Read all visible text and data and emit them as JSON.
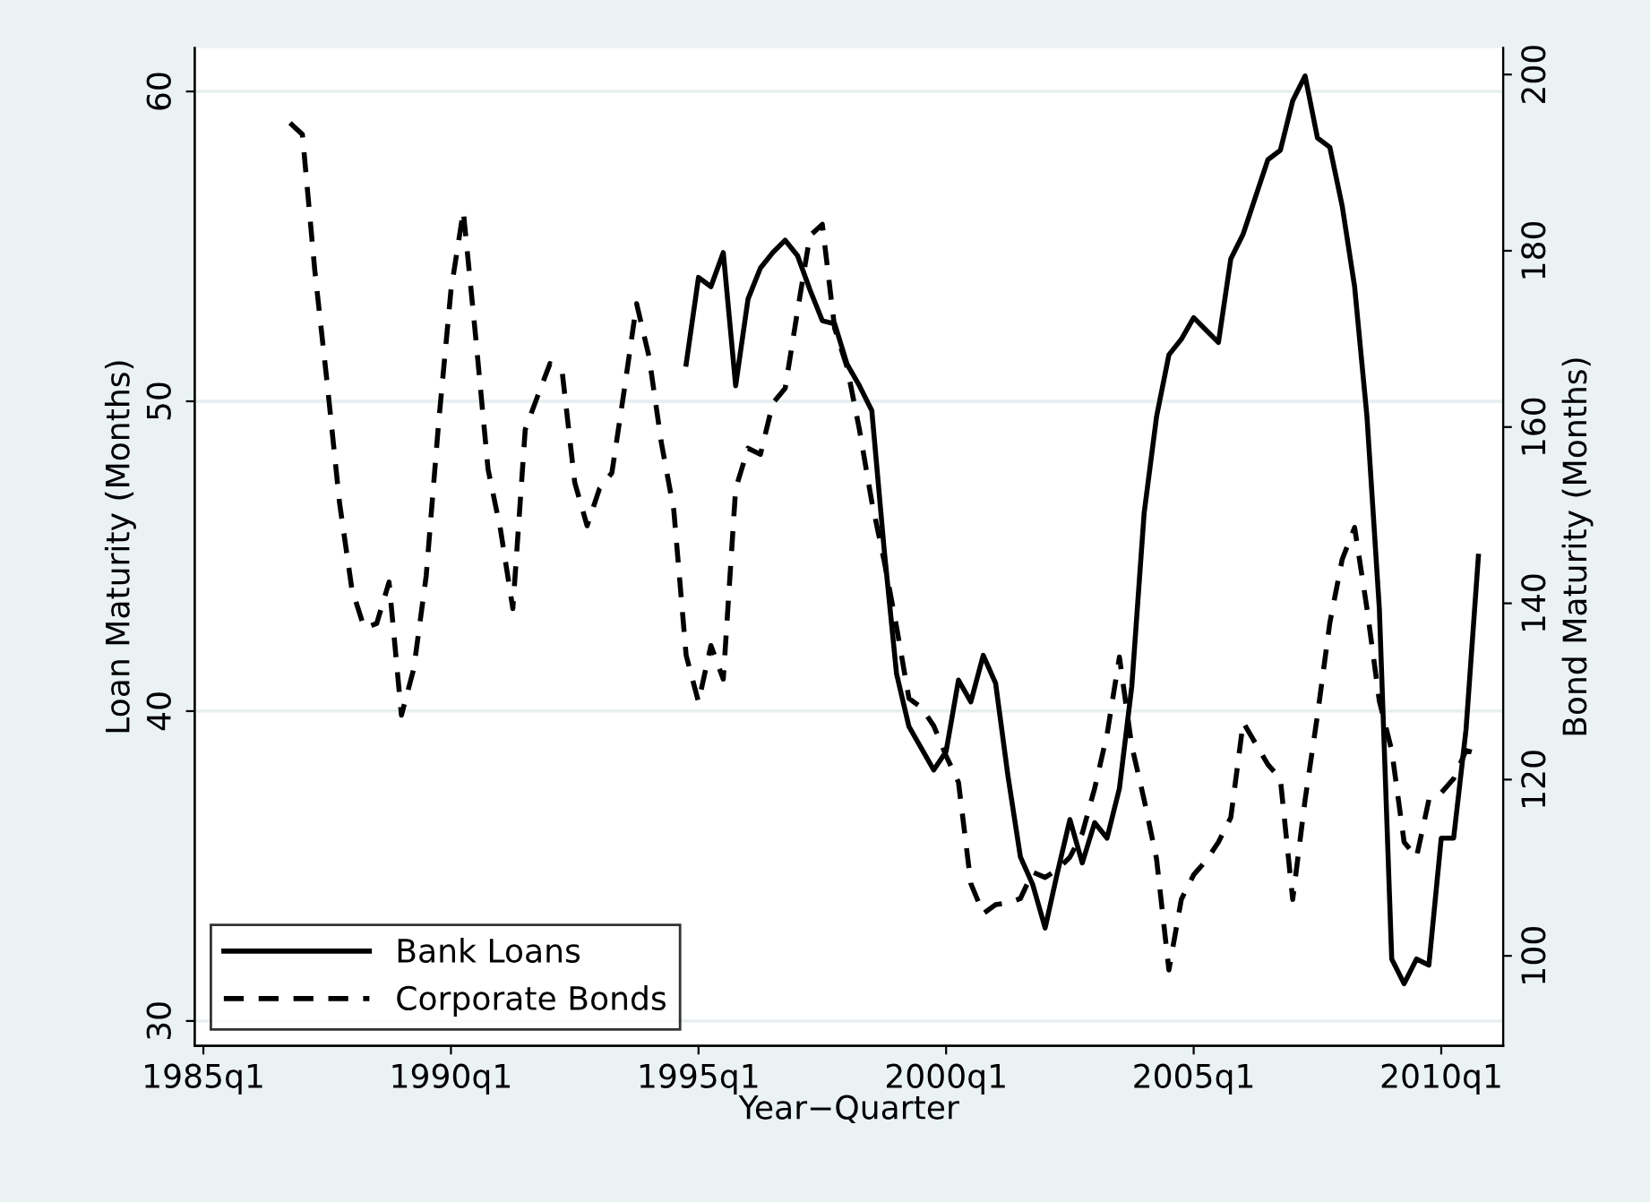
{
  "chart_data": {
    "type": "line",
    "xlabel": "Year−Quarter",
    "ylabel": "Loan Maturity (Months)",
    "y2label": "Bond Maturity (Months)",
    "categories": [
      "1985q1",
      null,
      null,
      null,
      null,
      null,
      null,
      null,
      null,
      null,
      null,
      null,
      null,
      null,
      null,
      null,
      null,
      null,
      null,
      null,
      "1990q1",
      null,
      null,
      null,
      null,
      null,
      null,
      null,
      null,
      null,
      null,
      null,
      null,
      null,
      null,
      null,
      null,
      null,
      null,
      null,
      "1995q1",
      null,
      null,
      null,
      null,
      null,
      null,
      null,
      null,
      null,
      null,
      null,
      null,
      null,
      null,
      null,
      null,
      null,
      null,
      null,
      "2000q1",
      null,
      null,
      null,
      null,
      null,
      null,
      null,
      null,
      null,
      null,
      null,
      null,
      null,
      null,
      null,
      null,
      null,
      null,
      null,
      "2005q1",
      null,
      null,
      null,
      null,
      null,
      null,
      null,
      null,
      null,
      null,
      null,
      null,
      null,
      null,
      null,
      null,
      null,
      null,
      null,
      "2010q1",
      null,
      null,
      null
    ],
    "series": [
      {
        "name": "Bank Loans",
        "color": "#000000",
        "line_style": "solid",
        "values": [
          null,
          null,
          null,
          null,
          null,
          null,
          null,
          null,
          null,
          null,
          null,
          null,
          null,
          null,
          null,
          null,
          null,
          null,
          null,
          null,
          null,
          null,
          null,
          null,
          null,
          null,
          null,
          null,
          null,
          null,
          null,
          null,
          null,
          null,
          null,
          null,
          null,
          null,
          null,
          51.2,
          54.0,
          53.7,
          54.8,
          50.5,
          53.3,
          54.3,
          54.8,
          55.2,
          54.7,
          53.6,
          52.6,
          52.5,
          51.2,
          50.5,
          49.7,
          45.2,
          41.2,
          39.5,
          38.8,
          38.1,
          38.7,
          41.0,
          40.3,
          41.8,
          40.9,
          37.9,
          35.3,
          34.4,
          33.0,
          34.8,
          36.5,
          35.1,
          36.4,
          35.9,
          37.5,
          40.8,
          46.4,
          49.5,
          51.5,
          52.0,
          52.7,
          52.3,
          51.9,
          54.6,
          55.4,
          56.6,
          57.8,
          58.1,
          59.7,
          60.5,
          58.5,
          58.2,
          56.3,
          53.7,
          49.5,
          43.3,
          32.0,
          31.2,
          32.0,
          31.8,
          35.9,
          35.9,
          39.4,
          45.0
        ]
      },
      {
        "name": "Corporate Bonds",
        "color": "#000000",
        "line_style": "dashed",
        "axis": "y2",
        "values": [
          null,
          null,
          null,
          null,
          null,
          null,
          null,
          194.5,
          193.2,
          177.8,
          165.0,
          151.4,
          141.6,
          137.2,
          137.7,
          142.4,
          127.3,
          132.6,
          143.1,
          160.4,
          175.5,
          184.5,
          170.2,
          155.2,
          148.4,
          139.4,
          159.7,
          163.5,
          167.2,
          166.1,
          153.7,
          148.8,
          153.0,
          154.8,
          164.2,
          174.0,
          168.0,
          158.2,
          150.6,
          134.1,
          128.8,
          135.2,
          131.4,
          153.0,
          157.6,
          156.9,
          162.7,
          164.4,
          173.2,
          181.7,
          183.0,
          171.2,
          166.8,
          159.7,
          151.5,
          144.8,
          137.3,
          129.2,
          128.2,
          126.1,
          122.7,
          119.7,
          108.2,
          104.8,
          105.8,
          106.0,
          106.5,
          109.5,
          108.9,
          109.8,
          111.2,
          113.9,
          119.0,
          125.1,
          133.9,
          123.8,
          117.7,
          111.0,
          98.4,
          106.4,
          109.2,
          110.8,
          112.9,
          115.7,
          126.5,
          124.1,
          121.7,
          120.1,
          106.4,
          117.7,
          127.3,
          137.8,
          145.0,
          148.6,
          139.4,
          128.9,
          123.3,
          112.9,
          111.2,
          117.7,
          118.5,
          120.1,
          123.3,
          122.9
        ]
      }
    ],
    "ylim": [
      29.2,
      61.4
    ],
    "yticks": [
      30,
      40,
      50,
      60
    ],
    "y2lim": [
      89.8,
      203.0
    ],
    "y2ticks": [
      100,
      120,
      140,
      160,
      180,
      200
    ],
    "grid": "y",
    "legend": "bottom left",
    "marker": "none"
  }
}
